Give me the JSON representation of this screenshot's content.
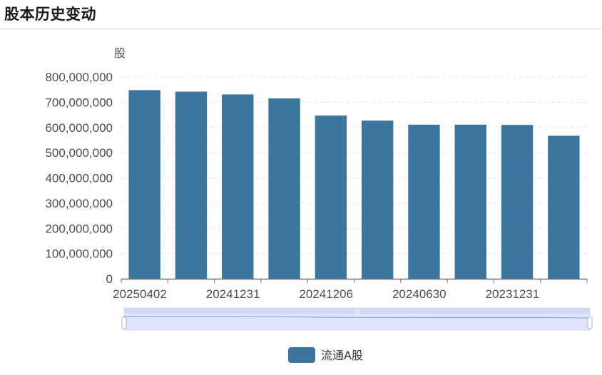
{
  "header": {
    "title": "股本历史变动"
  },
  "colors": {
    "bar": "#3c769c",
    "axis": "#6e7079",
    "grid": "#e3e5ea",
    "zoom_fill": "#dfe5fb",
    "zoom_border": "#d2dbee",
    "zoom_line": "#7b9cd4"
  },
  "chart_data": {
    "type": "bar",
    "title": "",
    "xlabel": "",
    "ylabel": "股",
    "ylim": [
      0,
      800000000
    ],
    "yticks": [
      0,
      100000000,
      200000000,
      300000000,
      400000000,
      500000000,
      600000000,
      700000000,
      800000000
    ],
    "ytick_labels": [
      "0",
      "100,000,000",
      "200,000,000",
      "300,000,000",
      "400,000,000",
      "500,000,000",
      "600,000,000",
      "700,000,000",
      "800,000,000"
    ],
    "xtick_labels": [
      "20250402",
      "20241231",
      "20241206",
      "20240630",
      "20231231"
    ],
    "grid": true,
    "legend_position": "bottom-center",
    "series": [
      {
        "name": "流通A股",
        "values": [
          748000000,
          742000000,
          731000000,
          715000000,
          647000000,
          627000000,
          611000000,
          611000000,
          610000000,
          567000000
        ]
      }
    ]
  }
}
